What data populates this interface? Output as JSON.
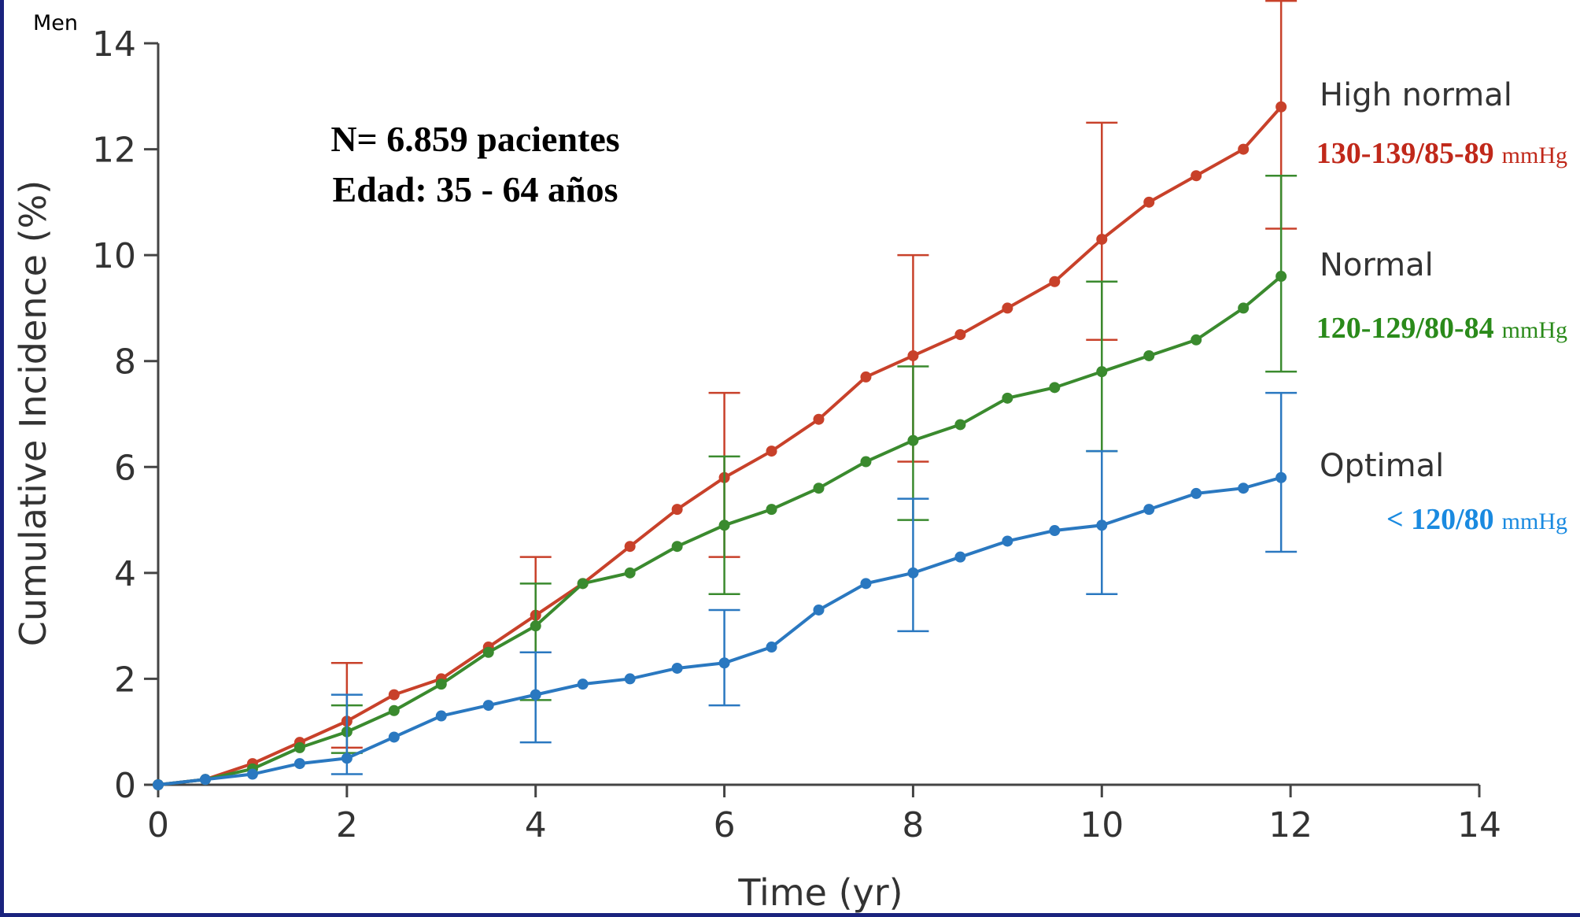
{
  "chart_data": {
    "type": "line",
    "corner_label": "Men",
    "annotations": [
      "N= 6.859 pacientes",
      "Edad: 35 - 64 años"
    ],
    "xlabel": "Time (yr)",
    "ylabel": "Cumulative Incidence (%)",
    "xlim": [
      0,
      14
    ],
    "xticks": [
      0,
      2,
      4,
      6,
      8,
      10,
      12,
      14
    ],
    "ylim": [
      0,
      14
    ],
    "yticks": [
      0,
      2,
      4,
      6,
      8,
      10,
      12,
      14
    ],
    "x": [
      0,
      0.5,
      1,
      1.5,
      2,
      2.5,
      3,
      3.5,
      4,
      4.5,
      5,
      5.5,
      6,
      6.5,
      7,
      7.5,
      8,
      8.5,
      9,
      9.5,
      10,
      10.5,
      11,
      11.5,
      11.9
    ],
    "error_x": [
      2,
      4,
      6,
      8,
      10,
      11.9
    ],
    "series": [
      {
        "name": "High normal",
        "range": "130-139/85-89",
        "unit": "mmHg",
        "color": "#c8412a",
        "label_color": "#c0281a",
        "values": [
          0,
          0.1,
          0.4,
          0.8,
          1.2,
          1.7,
          2.0,
          2.6,
          3.2,
          3.8,
          4.5,
          5.2,
          5.8,
          6.3,
          6.9,
          7.7,
          8.1,
          8.5,
          9.0,
          9.5,
          10.3,
          11.0,
          11.5,
          12.0,
          12.8
        ],
        "error_low": [
          0.7,
          2.5,
          4.3,
          6.1,
          8.4,
          10.5
        ],
        "error_high": [
          2.3,
          4.3,
          7.4,
          10.0,
          12.5,
          14.8
        ]
      },
      {
        "name": "Normal",
        "range": "120-129/80-84",
        "unit": "mmHg",
        "color": "#3a8a2e",
        "label_color": "#2a8a1a",
        "values": [
          0,
          0.1,
          0.3,
          0.7,
          1.0,
          1.4,
          1.9,
          2.5,
          3.0,
          3.8,
          4.0,
          4.5,
          4.9,
          5.2,
          5.6,
          6.1,
          6.5,
          6.8,
          7.3,
          7.5,
          7.8,
          8.1,
          8.4,
          9.0,
          9.6
        ],
        "error_low": [
          0.6,
          1.6,
          3.6,
          5.0,
          6.3,
          7.8
        ],
        "error_high": [
          1.5,
          3.8,
          6.2,
          7.9,
          9.5,
          11.5
        ]
      },
      {
        "name": "Optimal",
        "range": "< 120/80",
        "unit": "mmHg",
        "color": "#2a78c0",
        "label_color": "#1a8ae0",
        "values": [
          0,
          0.1,
          0.2,
          0.4,
          0.5,
          0.9,
          1.3,
          1.5,
          1.7,
          1.9,
          2.0,
          2.2,
          2.3,
          2.6,
          3.3,
          3.8,
          4.0,
          4.3,
          4.6,
          4.8,
          4.9,
          5.2,
          5.5,
          5.6,
          5.8
        ],
        "error_low": [
          0.2,
          0.8,
          1.5,
          2.9,
          3.6,
          4.4
        ],
        "error_high": [
          1.7,
          2.5,
          3.3,
          5.4,
          6.3,
          7.4
        ]
      }
    ]
  }
}
